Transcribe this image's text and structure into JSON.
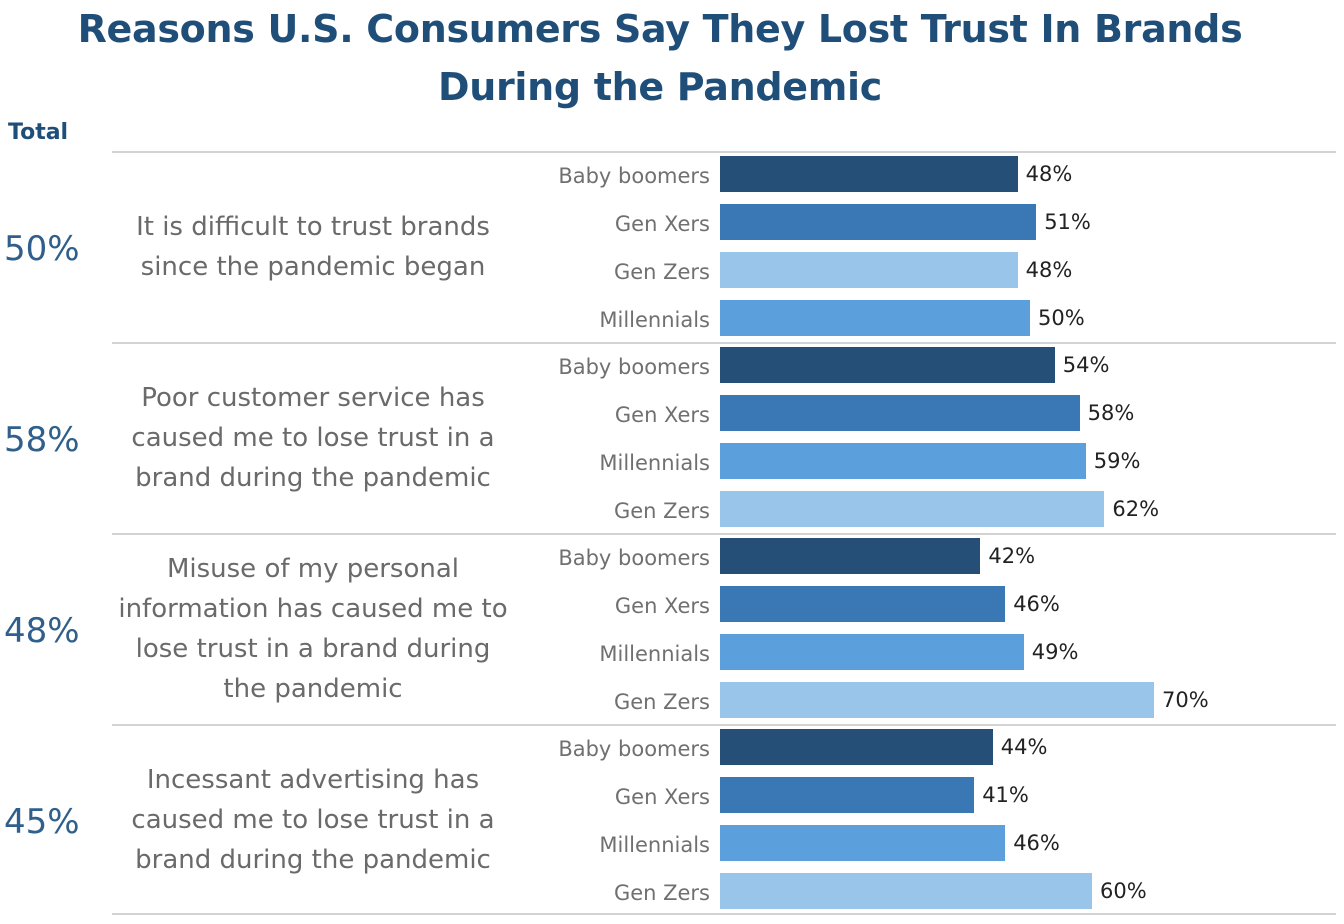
{
  "chart_data": {
    "type": "bar",
    "orientation": "horizontal",
    "title": "Reasons U.S. Consumers Say They Lost Trust In Brands During the Pandemic",
    "total_header": "Total",
    "value_suffix": "%",
    "xlim": [
      0,
      100
    ],
    "colors": {
      "Baby boomers": "#264f78",
      "Gen Xers": "#3a78b5",
      "Millennials": "#5b9fdc",
      "Gen Zers": "#9ac5eb"
    },
    "groups": [
      {
        "question": "It is difficult to trust brands since the pandemic began",
        "total": "50%",
        "bars": [
          {
            "category": "Baby boomers",
            "value": 48
          },
          {
            "category": "Gen Xers",
            "value": 51
          },
          {
            "category": "Gen Zers",
            "value": 48
          },
          {
            "category": "Millennials",
            "value": 50
          }
        ]
      },
      {
        "question": "Poor customer service has caused me to lose trust in a brand during the pandemic",
        "total": "58%",
        "bars": [
          {
            "category": "Baby boomers",
            "value": 54
          },
          {
            "category": "Gen Xers",
            "value": 58
          },
          {
            "category": "Millennials",
            "value": 59
          },
          {
            "category": "Gen Zers",
            "value": 62
          }
        ]
      },
      {
        "question": "Misuse of my personal information has caused me to lose trust in a brand during the pandemic",
        "total": "48%",
        "bars": [
          {
            "category": "Baby boomers",
            "value": 42
          },
          {
            "category": "Gen Xers",
            "value": 46
          },
          {
            "category": "Millennials",
            "value": 49
          },
          {
            "category": "Gen Zers",
            "value": 70
          }
        ]
      },
      {
        "question": "Incessant advertising has caused me to lose trust in a brand during the pandemic",
        "total": "45%",
        "bars": [
          {
            "category": "Baby boomers",
            "value": 44
          },
          {
            "category": "Gen Xers",
            "value": 41
          },
          {
            "category": "Millennials",
            "value": 46
          },
          {
            "category": "Gen Zers",
            "value": 60
          }
        ]
      }
    ]
  }
}
